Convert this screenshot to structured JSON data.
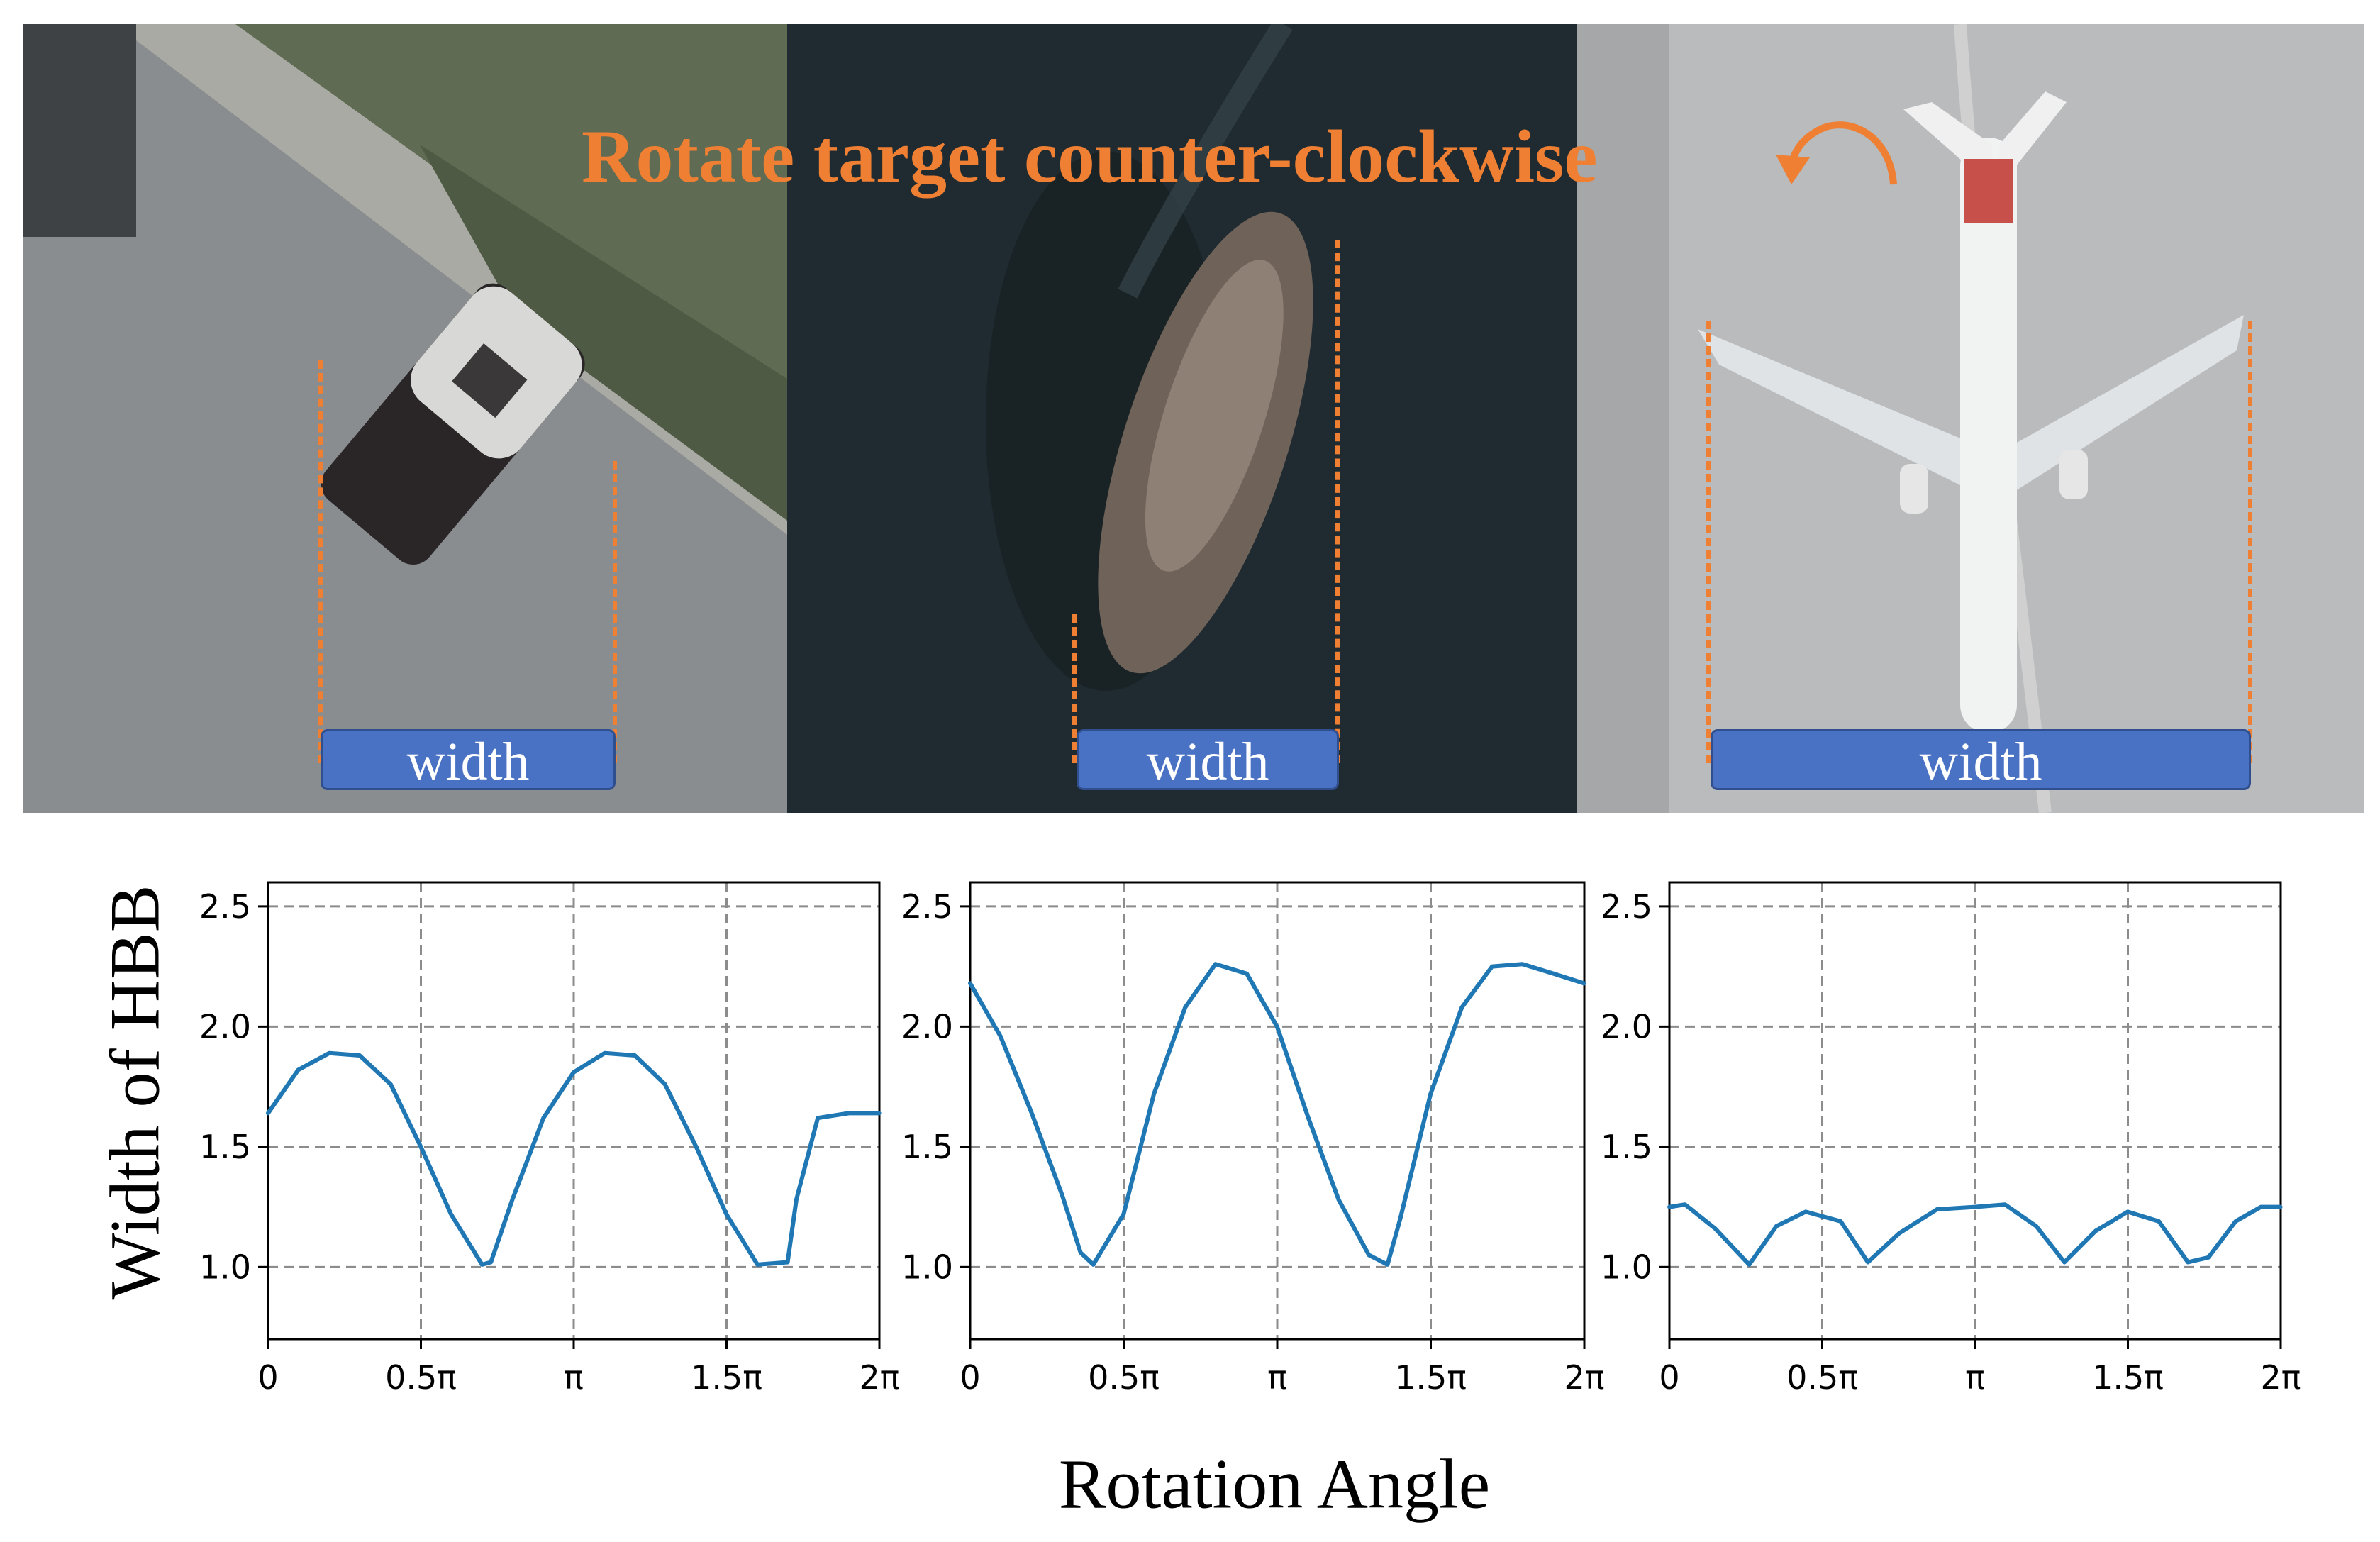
{
  "figure": {
    "annotation": "Rotate target counter-clockwise",
    "rotate_icon": "counter-clockwise-arrow-icon",
    "width_label": "width",
    "accent_color": "#ee7f33",
    "label_color": "#4a72c4",
    "line_color": "#1f77b4"
  },
  "panels": [
    {
      "subject": "car",
      "photo_tone": "#8a8d8f"
    },
    {
      "subject": "ship",
      "photo_tone": "#1f2b31"
    },
    {
      "subject": "airplane",
      "photo_tone": "#b9bbbd"
    }
  ],
  "chart_data": [
    {
      "type": "line",
      "xlabel": "Rotation Angle",
      "ylabel": "Width of HBB",
      "xlim": [
        0,
        6.2832
      ],
      "ylim": [
        0.7,
        2.6
      ],
      "xticks": [
        "0",
        "0.5π",
        "π",
        "1.5π",
        "2π"
      ],
      "yticks": [
        "1.0",
        "1.5",
        "2.0",
        "2.5"
      ],
      "grid": true,
      "series": [
        {
          "x_unit": "rad",
          "x": [
            0,
            0.31,
            0.63,
            0.94,
            1.26,
            1.57,
            1.88,
            2.2,
            2.29,
            2.51,
            2.83,
            3.14,
            3.46,
            3.77,
            4.08,
            4.4,
            4.71,
            5.03,
            5.34,
            5.43,
            5.65,
            5.97,
            6.28
          ],
          "values": [
            1.64,
            1.82,
            1.89,
            1.88,
            1.76,
            1.5,
            1.22,
            1.01,
            1.02,
            1.28,
            1.62,
            1.81,
            1.89,
            1.88,
            1.76,
            1.5,
            1.22,
            1.01,
            1.02,
            1.28,
            1.62,
            1.64,
            1.64
          ]
        }
      ]
    },
    {
      "type": "line",
      "xlabel": "Rotation Angle",
      "ylabel": "Width of HBB",
      "xlim": [
        0,
        6.2832
      ],
      "ylim": [
        0.7,
        2.6
      ],
      "xticks": [
        "0",
        "0.5π",
        "π",
        "1.5π",
        "2π"
      ],
      "yticks": [
        "1.0",
        "1.5",
        "2.0",
        "2.5"
      ],
      "grid": true,
      "series": [
        {
          "x_unit": "rad",
          "x": [
            0,
            0.31,
            0.63,
            0.94,
            1.13,
            1.26,
            1.57,
            1.88,
            2.2,
            2.51,
            2.83,
            3.14,
            3.46,
            3.77,
            4.08,
            4.27,
            4.4,
            4.71,
            5.03,
            5.34,
            5.65,
            5.97,
            6.28
          ],
          "values": [
            2.18,
            1.96,
            1.64,
            1.3,
            1.06,
            1.01,
            1.22,
            1.72,
            2.08,
            2.26,
            2.22,
            2.0,
            1.62,
            1.28,
            1.05,
            1.01,
            1.2,
            1.72,
            2.08,
            2.25,
            2.26,
            2.22,
            2.18
          ]
        }
      ]
    },
    {
      "type": "line",
      "xlabel": "Rotation Angle",
      "ylabel": "Width of HBB",
      "xlim": [
        0,
        6.2832
      ],
      "ylim": [
        0.7,
        2.6
      ],
      "xticks": [
        "0",
        "0.5π",
        "π",
        "1.5π",
        "2π"
      ],
      "yticks": [
        "1.0",
        "1.5",
        "2.0",
        "2.5"
      ],
      "grid": true,
      "series": [
        {
          "x_unit": "rad",
          "x": [
            0,
            0.16,
            0.47,
            0.82,
            1.1,
            1.4,
            1.76,
            2.04,
            2.36,
            2.75,
            3.14,
            3.45,
            3.77,
            4.06,
            4.38,
            4.71,
            5.03,
            5.33,
            5.54,
            5.82,
            6.08,
            6.28
          ],
          "values": [
            1.25,
            1.26,
            1.16,
            1.01,
            1.17,
            1.23,
            1.19,
            1.02,
            1.14,
            1.24,
            1.25,
            1.26,
            1.17,
            1.02,
            1.15,
            1.23,
            1.19,
            1.02,
            1.04,
            1.19,
            1.25,
            1.25
          ]
        }
      ]
    }
  ]
}
